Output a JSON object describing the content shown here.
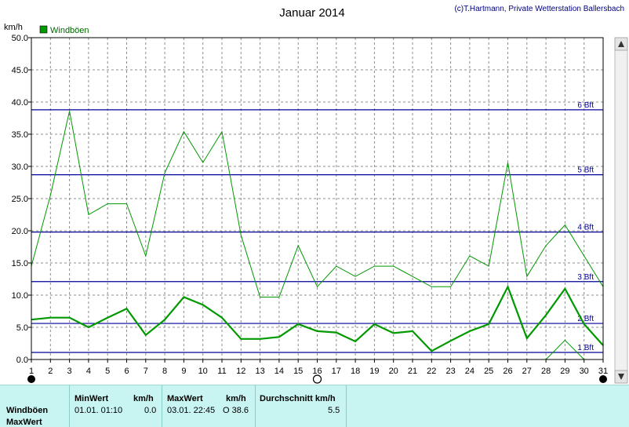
{
  "title": "Januar 2014",
  "credit": "(c)T.Hartmann, Private Wetterstation Ballersbach",
  "chart_data": {
    "type": "line",
    "ylabel": "km/h",
    "ylim": [
      0,
      50
    ],
    "yticks": [
      "0.0",
      "5.0",
      "10.0",
      "15.0",
      "20.0",
      "25.0",
      "30.0",
      "35.0",
      "40.0",
      "45.0",
      "50.0"
    ],
    "x": [
      1,
      2,
      3,
      4,
      5,
      6,
      7,
      8,
      9,
      10,
      11,
      12,
      13,
      14,
      15,
      16,
      17,
      18,
      19,
      20,
      21,
      22,
      23,
      24,
      25,
      26,
      27,
      28,
      29,
      30,
      31
    ],
    "xlim": [
      1,
      31
    ],
    "grid": true,
    "legend": "top-left",
    "series": [
      {
        "name": "Windböen",
        "color": "#009900",
        "values": [
          14.5,
          25.5,
          38.6,
          22.5,
          24.2,
          24.2,
          16.1,
          29.0,
          35.4,
          30.6,
          35.4,
          19.3,
          9.7,
          9.7,
          17.7,
          11.3,
          14.5,
          12.9,
          14.5,
          14.5,
          12.9,
          11.3,
          11.3,
          16.1,
          14.5,
          30.6,
          12.9,
          17.7,
          20.9,
          16.1,
          11.3
        ]
      },
      {
        "name": "",
        "color": "#009900",
        "values": [
          6.2,
          6.5,
          6.5,
          5.0,
          6.5,
          7.9,
          3.8,
          6.2,
          9.7,
          8.5,
          6.5,
          3.2,
          3.2,
          3.5,
          5.5,
          4.4,
          4.2,
          2.8,
          5.5,
          4.1,
          4.4,
          1.3,
          2.9,
          4.4,
          5.5,
          11.3,
          3.3,
          6.9,
          11.0,
          5.5,
          2.2
        ]
      },
      {
        "name": "",
        "color": "#009900",
        "values": [
          null,
          null,
          null,
          null,
          null,
          null,
          null,
          null,
          null,
          null,
          null,
          null,
          null,
          null,
          null,
          null,
          null,
          null,
          null,
          null,
          null,
          null,
          null,
          null,
          null,
          null,
          null,
          0.0,
          3.0,
          0.0,
          null
        ]
      }
    ],
    "beaufort_lines": [
      {
        "label": "1 Bft",
        "value": 1.1
      },
      {
        "label": "2 Bft",
        "value": 5.6
      },
      {
        "label": "3 Bft",
        "value": 12.1
      },
      {
        "label": "4 Bft",
        "value": 19.8
      },
      {
        "label": "5 Bft",
        "value": 28.7
      },
      {
        "label": "6 Bft",
        "value": 38.8
      }
    ],
    "moon_phases": [
      {
        "day": 1,
        "phase": "new"
      },
      {
        "day": 16,
        "phase": "full"
      },
      {
        "day": 31,
        "phase": "new"
      }
    ]
  },
  "stats": {
    "row_labels": [
      "Windböen",
      "MaxWert"
    ],
    "min_header": "MinWert",
    "unit_header": "km/h",
    "max_header": "MaxWert",
    "max_unit_header": "km/h",
    "avg_header": "Durchschnitt km/h",
    "min_time": "01.01.  01:10",
    "min_value": "0.0",
    "max_time": "03.01.  22:45",
    "max_value": "O 38.6",
    "avg_value": "5.5"
  }
}
